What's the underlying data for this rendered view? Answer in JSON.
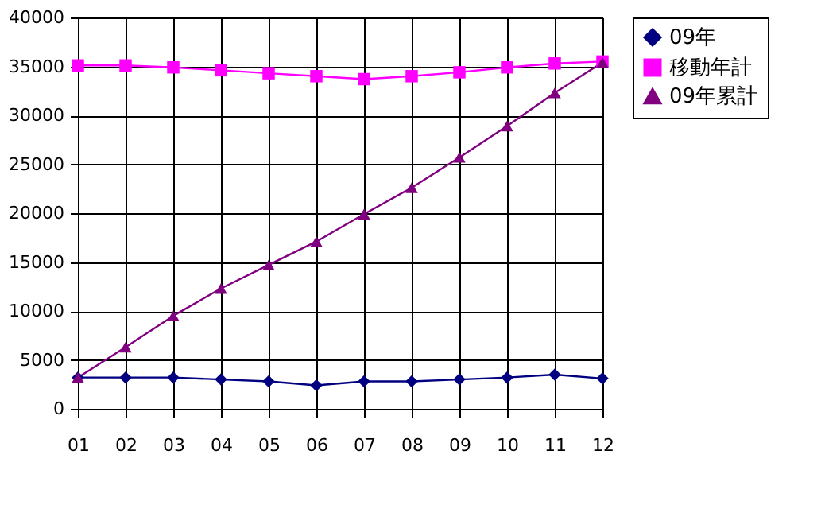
{
  "chart_data": {
    "type": "line",
    "categories": [
      "01",
      "02",
      "03",
      "04",
      "05",
      "06",
      "07",
      "08",
      "09",
      "10",
      "11",
      "12"
    ],
    "series": [
      {
        "name": "09年",
        "color": "#000080",
        "marker": "diamond",
        "values": [
          3200,
          3200,
          3200,
          3000,
          2800,
          2400,
          2800,
          2800,
          3000,
          3200,
          3500,
          3100
        ]
      },
      {
        "name": "移動年計",
        "color": "#ff00ff",
        "marker": "square",
        "values": [
          35100,
          35100,
          34900,
          34600,
          34300,
          34000,
          33700,
          34000,
          34400,
          34900,
          35300,
          35500
        ]
      },
      {
        "name": "09年累計",
        "color": "#800080",
        "marker": "triangle",
        "values": [
          3200,
          6300,
          9500,
          12300,
          14700,
          17100,
          19900,
          22600,
          25700,
          28900,
          32300,
          35400
        ]
      }
    ],
    "ylim": [
      0,
      40000
    ],
    "yticks": [
      0,
      5000,
      10000,
      15000,
      20000,
      25000,
      30000,
      35000,
      40000
    ],
    "grid": true,
    "legend": "right"
  }
}
